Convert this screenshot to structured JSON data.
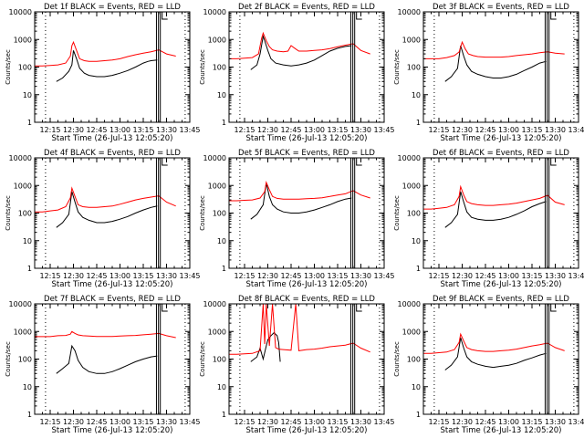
{
  "figure": {
    "ylabel": "Counts/sec",
    "xlabel": "Start Time (26-Jul-13 12:05:20)",
    "y_tick_labels": [
      "1",
      "10",
      "100",
      "1000",
      "10000"
    ],
    "x_tick_labels": [
      "12:15",
      "12:30",
      "12:45",
      "13:00",
      "13:15",
      "13:30",
      "13:45"
    ],
    "colors": {
      "events": "#000000",
      "lld": "#ff0000"
    }
  },
  "chart_data": [
    {
      "type": "line",
      "title": "Det 1f BLACK = Events, RED = LLD",
      "x_unit": "minutes after 12:00",
      "y_scale": "log",
      "ylim": [
        1,
        10000
      ],
      "xlim": [
        5,
        105
      ],
      "series": [
        {
          "name": "Events",
          "x": [
            19,
            23,
            27,
            29,
            30,
            32,
            34,
            37,
            40,
            45,
            50,
            55,
            60,
            65,
            70,
            75,
            78,
            80,
            84
          ],
          "y": [
            30,
            40,
            70,
            120,
            400,
            200,
            90,
            60,
            50,
            45,
            45,
            50,
            60,
            75,
            100,
            140,
            160,
            170,
            180
          ]
        },
        {
          "name": "LLD",
          "x": [
            5,
            10,
            15,
            20,
            25,
            28,
            29,
            30,
            32,
            34,
            37,
            40,
            45,
            50,
            55,
            60,
            65,
            70,
            75,
            80,
            85,
            90,
            96
          ],
          "y": [
            110,
            110,
            115,
            120,
            140,
            250,
            600,
            800,
            400,
            200,
            170,
            160,
            160,
            170,
            180,
            200,
            240,
            280,
            320,
            360,
            420,
            300,
            250
          ]
        }
      ]
    },
    {
      "type": "line",
      "title": "Det 2f BLACK = Events, RED = LLD",
      "x_unit": "minutes after 12:00",
      "y_scale": "log",
      "ylim": [
        1,
        10000
      ],
      "xlim": [
        5,
        105
      ],
      "series": [
        {
          "name": "Events",
          "x": [
            19,
            23,
            25,
            27,
            28,
            30,
            32,
            35,
            40,
            45,
            50,
            55,
            60,
            65,
            70,
            75,
            80,
            84
          ],
          "y": [
            80,
            120,
            300,
            1300,
            900,
            400,
            200,
            140,
            120,
            110,
            120,
            140,
            180,
            260,
            380,
            480,
            560,
            600
          ]
        },
        {
          "name": "LLD",
          "x": [
            5,
            10,
            15,
            20,
            24,
            26,
            27,
            29,
            31,
            33,
            36,
            40,
            43,
            45,
            48,
            50,
            55,
            60,
            65,
            70,
            75,
            80,
            85,
            90,
            96
          ],
          "y": [
            200,
            200,
            210,
            220,
            300,
            1100,
            1700,
            900,
            550,
            420,
            380,
            360,
            380,
            600,
            450,
            380,
            380,
            400,
            420,
            470,
            540,
            620,
            700,
            400,
            300
          ]
        }
      ]
    },
    {
      "type": "line",
      "title": "Det 3f BLACK = Events, RED = LLD",
      "x_unit": "minutes after 12:00",
      "y_scale": "log",
      "ylim": [
        1,
        10000
      ],
      "xlim": [
        5,
        105
      ],
      "series": [
        {
          "name": "Events",
          "x": [
            19,
            23,
            27,
            29,
            31,
            33,
            36,
            40,
            45,
            50,
            55,
            60,
            65,
            70,
            75,
            80,
            84
          ],
          "y": [
            30,
            45,
            90,
            600,
            250,
            120,
            70,
            55,
            45,
            40,
            40,
            45,
            55,
            75,
            100,
            140,
            160
          ]
        },
        {
          "name": "LLD",
          "x": [
            5,
            10,
            15,
            20,
            25,
            28,
            30,
            32,
            34,
            37,
            40,
            45,
            50,
            55,
            60,
            65,
            70,
            75,
            80,
            85,
            90,
            96
          ],
          "y": [
            200,
            200,
            200,
            220,
            260,
            350,
            800,
            450,
            300,
            260,
            240,
            230,
            230,
            230,
            240,
            260,
            280,
            300,
            330,
            360,
            320,
            300
          ]
        }
      ]
    },
    {
      "type": "line",
      "title": "Det 4f BLACK = Events, RED = LLD",
      "x_unit": "minutes after 12:00",
      "y_scale": "log",
      "ylim": [
        1,
        10000
      ],
      "xlim": [
        5,
        105
      ],
      "series": [
        {
          "name": "Events",
          "x": [
            19,
            23,
            27,
            29,
            31,
            33,
            36,
            40,
            45,
            50,
            55,
            60,
            65,
            70,
            75,
            80,
            84
          ],
          "y": [
            30,
            45,
            90,
            600,
            250,
            110,
            70,
            55,
            45,
            45,
            50,
            60,
            75,
            100,
            130,
            160,
            180
          ]
        },
        {
          "name": "LLD",
          "x": [
            5,
            10,
            15,
            20,
            25,
            28,
            29,
            31,
            33,
            36,
            40,
            45,
            50,
            55,
            60,
            65,
            70,
            75,
            80,
            85,
            90,
            96
          ],
          "y": [
            110,
            110,
            120,
            130,
            170,
            350,
            800,
            400,
            200,
            170,
            160,
            160,
            170,
            180,
            210,
            250,
            300,
            340,
            380,
            420,
            250,
            180
          ]
        }
      ]
    },
    {
      "type": "line",
      "title": "Det 5f BLACK = Events, RED = LLD",
      "x_unit": "minutes after 12:00",
      "y_scale": "log",
      "ylim": [
        1,
        10000
      ],
      "xlim": [
        5,
        105
      ],
      "series": [
        {
          "name": "Events",
          "x": [
            19,
            23,
            27,
            29,
            31,
            33,
            36,
            40,
            45,
            50,
            55,
            60,
            65,
            70,
            75,
            80,
            84
          ],
          "y": [
            60,
            90,
            200,
            1200,
            400,
            200,
            140,
            110,
            100,
            100,
            110,
            130,
            160,
            200,
            260,
            320,
            350
          ]
        },
        {
          "name": "LLD",
          "x": [
            5,
            10,
            15,
            20,
            25,
            28,
            29,
            31,
            33,
            36,
            40,
            45,
            50,
            55,
            60,
            65,
            70,
            75,
            80,
            85,
            90,
            96
          ],
          "y": [
            280,
            280,
            290,
            300,
            350,
            600,
            1300,
            700,
            400,
            340,
            320,
            320,
            320,
            330,
            340,
            360,
            400,
            450,
            500,
            650,
            450,
            350
          ]
        }
      ]
    },
    {
      "type": "line",
      "title": "Det 6f BLACK = Events, RED = LLD",
      "x_unit": "minutes after 12:00",
      "y_scale": "log",
      "ylim": [
        1,
        10000
      ],
      "xlim": [
        5,
        105
      ],
      "series": [
        {
          "name": "Events",
          "x": [
            19,
            23,
            27,
            29,
            31,
            33,
            36,
            40,
            45,
            50,
            55,
            60,
            65,
            70,
            75,
            80,
            84
          ],
          "y": [
            30,
            45,
            90,
            600,
            250,
            110,
            70,
            60,
            55,
            55,
            60,
            70,
            90,
            120,
            170,
            220,
            260
          ]
        },
        {
          "name": "LLD",
          "x": [
            5,
            10,
            15,
            20,
            25,
            28,
            29,
            31,
            33,
            36,
            40,
            45,
            50,
            55,
            60,
            65,
            70,
            75,
            80,
            85,
            90,
            96
          ],
          "y": [
            140,
            140,
            150,
            160,
            200,
            400,
            900,
            450,
            260,
            220,
            200,
            190,
            190,
            200,
            210,
            230,
            260,
            300,
            340,
            440,
            250,
            200
          ]
        }
      ]
    },
    {
      "type": "line",
      "title": "Det 7f BLACK = Events, RED = LLD",
      "x_unit": "minutes after 12:00",
      "y_scale": "log",
      "ylim": [
        1,
        10000
      ],
      "xlim": [
        5,
        105
      ],
      "series": [
        {
          "name": "Events",
          "x": [
            19,
            23,
            27,
            29,
            31,
            33,
            36,
            40,
            45,
            50,
            55,
            60,
            65,
            70,
            75,
            80,
            84
          ],
          "y": [
            30,
            45,
            70,
            300,
            200,
            90,
            50,
            35,
            30,
            30,
            35,
            45,
            60,
            80,
            100,
            120,
            130
          ]
        },
        {
          "name": "LLD",
          "x": [
            5,
            10,
            15,
            20,
            25,
            28,
            29,
            31,
            33,
            36,
            40,
            45,
            50,
            55,
            60,
            65,
            70,
            75,
            80,
            85,
            90,
            96
          ],
          "y": [
            650,
            650,
            650,
            700,
            720,
            800,
            1000,
            850,
            750,
            700,
            680,
            660,
            660,
            660,
            680,
            700,
            720,
            760,
            800,
            850,
            700,
            600
          ]
        }
      ]
    },
    {
      "type": "line",
      "title": "Det 8f BLACK = Events, RED = LLD",
      "x_unit": "minutes after 12:00",
      "y_scale": "log",
      "ylim": [
        1,
        10000
      ],
      "xlim": [
        5,
        105
      ],
      "series": [
        {
          "name": "Events",
          "x": [
            19,
            23,
            25,
            27,
            29,
            30,
            32,
            34,
            36,
            37,
            38
          ],
          "y": [
            80,
            120,
            250,
            100,
            300,
            500,
            700,
            900,
            700,
            400,
            80
          ]
        },
        {
          "name": "LLD",
          "x": [
            5,
            10,
            15,
            20,
            25,
            27,
            28,
            29,
            31,
            33,
            35,
            37,
            40,
            45,
            48,
            50,
            55,
            60,
            65,
            70,
            75,
            80,
            85,
            90,
            96
          ],
          "y": [
            150,
            150,
            155,
            160,
            200,
            10000,
            350,
            10000,
            300,
            10000,
            260,
            230,
            220,
            210,
            10000,
            200,
            220,
            230,
            250,
            280,
            300,
            320,
            380,
            250,
            180
          ]
        }
      ]
    },
    {
      "type": "line",
      "title": "Det 9f BLACK = Events, RED = LLD",
      "x_unit": "minutes after 12:00",
      "y_scale": "log",
      "ylim": [
        1,
        10000
      ],
      "xlim": [
        5,
        105
      ],
      "series": [
        {
          "name": "Events",
          "x": [
            19,
            23,
            27,
            29,
            31,
            33,
            36,
            40,
            45,
            50,
            55,
            60,
            65,
            70,
            75,
            80,
            84
          ],
          "y": [
            40,
            60,
            120,
            600,
            250,
            120,
            80,
            65,
            55,
            50,
            55,
            60,
            70,
            90,
            110,
            140,
            160
          ]
        },
        {
          "name": "LLD",
          "x": [
            5,
            10,
            15,
            20,
            25,
            28,
            29,
            31,
            33,
            36,
            40,
            45,
            50,
            55,
            60,
            65,
            70,
            75,
            80,
            85,
            90,
            96
          ],
          "y": [
            160,
            160,
            170,
            180,
            220,
            400,
            800,
            450,
            260,
            220,
            200,
            190,
            190,
            200,
            210,
            230,
            260,
            300,
            330,
            380,
            260,
            200
          ]
        }
      ]
    }
  ]
}
